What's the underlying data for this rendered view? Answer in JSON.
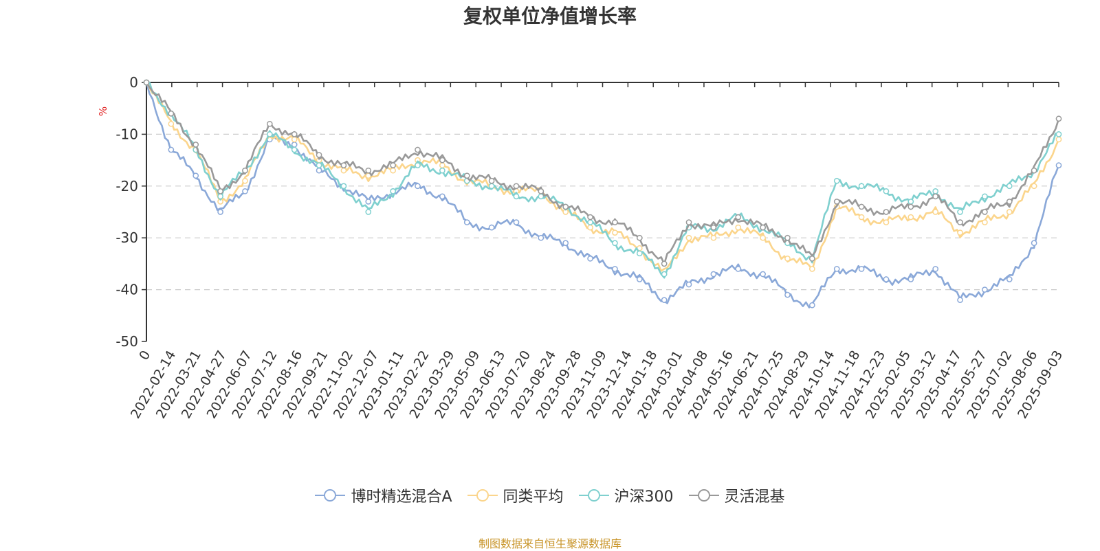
{
  "chart_data": {
    "type": "line",
    "title": "复权单位净值增长率",
    "ylabel": "%",
    "ylim": [
      -50,
      0
    ],
    "yticks": [
      0,
      -10,
      -20,
      -30,
      -40,
      -50
    ],
    "grid": true,
    "legend_position": "bottom-center",
    "x_tick_labels": [
      "0",
      "2022-02-14",
      "2022-03-21",
      "2022-04-27",
      "2022-06-07",
      "2022-07-12",
      "2022-08-16",
      "2022-09-21",
      "2022-11-02",
      "2022-12-07",
      "2023-01-11",
      "2023-02-22",
      "2023-03-29",
      "2023-05-09",
      "2023-06-13",
      "2023-07-20",
      "2023-08-24",
      "2023-09-28",
      "2023-11-09",
      "2023-12-14",
      "2024-01-18",
      "2024-03-01",
      "2024-04-08",
      "2024-05-16",
      "2024-06-21",
      "2024-07-25",
      "2024-08-29",
      "2024-10-14",
      "2024-11-18",
      "2024-12-23",
      "2025-02-05",
      "2025-03-12",
      "2025-04-17",
      "2025-05-27",
      "2025-07-02",
      "2025-08-06",
      "2025-09-03"
    ],
    "series": [
      {
        "name": "博时精选混合A",
        "color": "#8aa8d8",
        "values": [
          0,
          -13,
          -18,
          -25,
          -21,
          -11,
          -12,
          -17,
          -20,
          -23,
          -21,
          -20,
          -22,
          -27,
          -28,
          -27,
          -30,
          -31,
          -34,
          -36,
          -38,
          -42,
          -39,
          -37,
          -36,
          -37,
          -41,
          -43,
          -36,
          -36,
          -38,
          -38,
          -36,
          -42,
          -40,
          -38,
          -31,
          -16
        ]
      },
      {
        "name": "同类平均",
        "color": "#fbd58c",
        "values": [
          0,
          -8,
          -13,
          -23,
          -19,
          -10,
          -11,
          -15,
          -17,
          -18,
          -17,
          -15,
          -16,
          -19,
          -20,
          -21,
          -21,
          -25,
          -28,
          -29,
          -32,
          -37,
          -30,
          -30,
          -28,
          -30,
          -34,
          -36,
          -24,
          -26,
          -27,
          -26,
          -25,
          -29,
          -27,
          -25,
          -20,
          -11
        ]
      },
      {
        "name": "沪深300",
        "color": "#7fd0cf",
        "values": [
          0,
          -6,
          -13,
          -22,
          -17,
          -10,
          -13,
          -16,
          -20,
          -25,
          -21,
          -16,
          -17,
          -19,
          -20,
          -22,
          -22,
          -24,
          -27,
          -31,
          -33,
          -37,
          -28,
          -28,
          -26,
          -28,
          -31,
          -34,
          -19,
          -20,
          -21,
          -23,
          -21,
          -25,
          -22,
          -20,
          -17,
          -10
        ]
      },
      {
        "name": "灵活混基",
        "color": "#999999",
        "values": [
          0,
          -6,
          -12,
          -21,
          -17,
          -8,
          -10,
          -14,
          -16,
          -17,
          -16,
          -13,
          -15,
          -18,
          -19,
          -20,
          -21,
          -24,
          -26,
          -27,
          -30,
          -35,
          -27,
          -28,
          -26,
          -28,
          -30,
          -34,
          -23,
          -24,
          -25,
          -24,
          -22,
          -27,
          -25,
          -23,
          -17,
          -7
        ]
      }
    ]
  },
  "source_note": "制图数据来自恒生聚源数据库"
}
